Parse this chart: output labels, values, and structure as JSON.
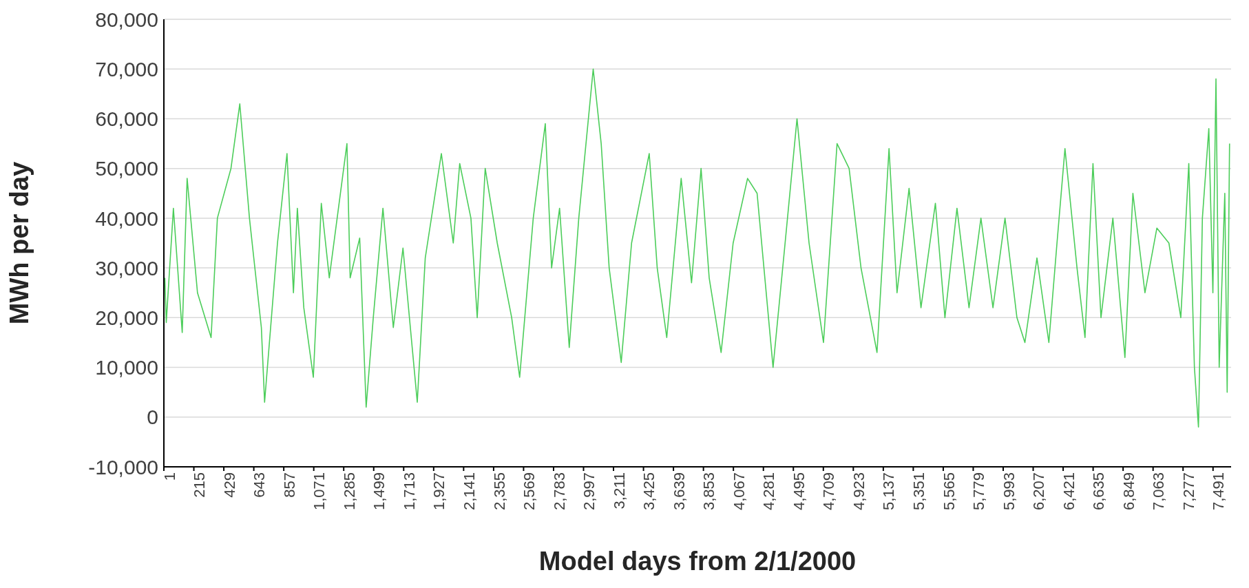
{
  "chart_data": {
    "type": "line",
    "xlabel": "Model days from 2/1/2000",
    "ylabel": "MWh per day",
    "grid": "y",
    "xlim": [
      1,
      7620
    ],
    "xticks": [
      1,
      215,
      429,
      643,
      857,
      {
        "value": 1071,
        "label": "1,071"
      },
      {
        "value": 1285,
        "label": "1,285"
      },
      {
        "value": 1499,
        "label": "1,499"
      },
      {
        "value": 1713,
        "label": "1,713"
      },
      {
        "value": 1927,
        "label": "1,927"
      },
      {
        "value": 2141,
        "label": "2,141"
      },
      {
        "value": 2355,
        "label": "2,355"
      },
      {
        "value": 2569,
        "label": "2,569"
      },
      {
        "value": 2783,
        "label": "2,783"
      },
      {
        "value": 2997,
        "label": "2,997"
      },
      {
        "value": 3211,
        "label": "3,211"
      },
      {
        "value": 3425,
        "label": "3,425"
      },
      {
        "value": 3639,
        "label": "3,639"
      },
      {
        "value": 3853,
        "label": "3,853"
      },
      {
        "value": 4067,
        "label": "4,067"
      },
      {
        "value": 4281,
        "label": "4,281"
      },
      {
        "value": 4495,
        "label": "4,495"
      },
      {
        "value": 4709,
        "label": "4,709"
      },
      {
        "value": 4923,
        "label": "4,923"
      },
      {
        "value": 5137,
        "label": "5,137"
      },
      {
        "value": 5351,
        "label": "5,351"
      },
      {
        "value": 5565,
        "label": "5,565"
      },
      {
        "value": 5779,
        "label": "5,779"
      },
      {
        "value": 5993,
        "label": "5,993"
      },
      {
        "value": 6207,
        "label": "6,207"
      },
      {
        "value": 6421,
        "label": "6,421"
      },
      {
        "value": 6635,
        "label": "6,635"
      },
      {
        "value": 6849,
        "label": "6,849"
      },
      {
        "value": 7063,
        "label": "7,063"
      },
      {
        "value": 7277,
        "label": "7,277"
      },
      {
        "value": 7491,
        "label": "7,491"
      }
    ],
    "ylim": [
      -10000,
      80000
    ],
    "yticks": [
      {
        "value": -10000,
        "label": "-10,000"
      },
      0,
      {
        "value": 10000,
        "label": "10,000"
      },
      {
        "value": 20000,
        "label": "20,000"
      },
      {
        "value": 30000,
        "label": "30,000"
      },
      {
        "value": 40000,
        "label": "40,000"
      },
      {
        "value": 50000,
        "label": "50,000"
      },
      {
        "value": 60000,
        "label": "60,000"
      },
      {
        "value": 70000,
        "label": "70,000"
      },
      {
        "value": 80000,
        "label": "80,000"
      }
    ],
    "x": [
      8,
      18,
      69,
      132,
      167,
      241,
      338,
      383,
      480,
      543,
      612,
      697,
      720,
      812,
      880,
      926,
      954,
      1000,
      1068,
      1125,
      1182,
      1308,
      1331,
      1399,
      1445,
      1496,
      1565,
      1639,
      1708,
      1810,
      1867,
      1982,
      2067,
      2113,
      2193,
      2238,
      2295,
      2381,
      2484,
      2541,
      2638,
      2724,
      2769,
      2826,
      2895,
      2963,
      3066,
      3123,
      3180,
      3266,
      3340,
      3466,
      3523,
      3591,
      3694,
      3768,
      3836,
      3894,
      3979,
      4065,
      4168,
      4236,
      4350,
      4436,
      4521,
      4607,
      4710,
      4807,
      4893,
      4978,
      5092,
      5178,
      5235,
      5321,
      5406,
      5509,
      5577,
      5663,
      5749,
      5834,
      5920,
      6006,
      6091,
      6148,
      6234,
      6319,
      6377,
      6434,
      6520,
      6577,
      6634,
      6691,
      6776,
      6862,
      6919,
      7005,
      7090,
      7176,
      7261,
      7318,
      7358,
      7387,
      7415,
      7461,
      7490,
      7512,
      7535,
      7575,
      7592,
      7609
    ],
    "series": [
      {
        "color": "#4ccd5a",
        "values": [
          28000,
          19000,
          42000,
          17000,
          48000,
          25000,
          16000,
          40000,
          50000,
          63000,
          40000,
          18000,
          3000,
          35000,
          53000,
          25000,
          42000,
          22000,
          8000,
          43000,
          28000,
          55000,
          28000,
          36000,
          2000,
          20000,
          42000,
          18000,
          34000,
          3000,
          32000,
          53000,
          35000,
          51000,
          40000,
          20000,
          50000,
          35000,
          20000,
          8000,
          40000,
          59000,
          30000,
          42000,
          14000,
          40000,
          70000,
          55000,
          30000,
          11000,
          35000,
          53000,
          30000,
          16000,
          48000,
          27000,
          50000,
          28000,
          13000,
          35000,
          48000,
          45000,
          10000,
          35000,
          60000,
          35000,
          15000,
          55000,
          50000,
          30000,
          13000,
          54000,
          25000,
          46000,
          22000,
          43000,
          20000,
          42000,
          22000,
          40000,
          22000,
          40000,
          20000,
          15000,
          32000,
          15000,
          35000,
          54000,
          30000,
          16000,
          51000,
          20000,
          40000,
          12000,
          45000,
          25000,
          38000,
          35000,
          20000,
          51000,
          10000,
          -2000,
          40000,
          58000,
          25000,
          68000,
          10000,
          45000,
          5000,
          55000
        ]
      }
    ]
  }
}
